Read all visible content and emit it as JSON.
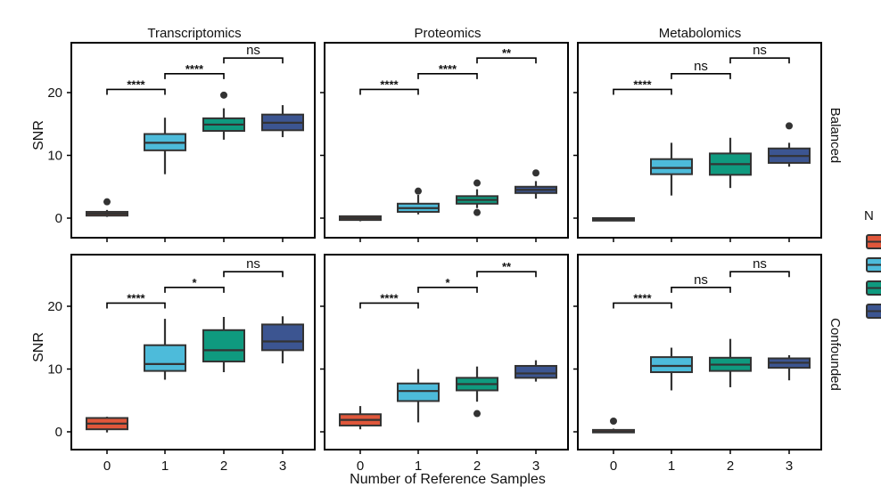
{
  "chart_data": {
    "type": "box",
    "xlabel": "Number of Reference Samples",
    "ylabel": "SNR",
    "categories": [
      "0",
      "1",
      "2",
      "3"
    ],
    "columns": [
      "Transcriptomics",
      "Proteomics",
      "Metabolomics"
    ],
    "rows": [
      "Balanced",
      "Confounded"
    ],
    "ylim": [
      -2,
      28
    ],
    "yticks": [
      0,
      10,
      20
    ],
    "legend_title": "N",
    "legend_placement": "right (partially cropped)",
    "colors": [
      "#E0573B",
      "#4DBBDA",
      "#0F9A7F",
      "#3C5591"
    ],
    "panels": [
      {
        "row": "Balanced",
        "column": "Transcriptomics",
        "boxes": [
          {
            "cat": "0",
            "min": 0.2,
            "q1": 0.4,
            "median": 0.7,
            "q3": 1.0,
            "max": 1.3,
            "outliers": [
              2.6
            ]
          },
          {
            "cat": "1",
            "min": 7.0,
            "q1": 10.8,
            "median": 12.0,
            "q3": 13.4,
            "max": 16.0,
            "outliers": []
          },
          {
            "cat": "2",
            "min": 12.5,
            "q1": 13.9,
            "median": 14.9,
            "q3": 15.9,
            "max": 17.5,
            "outliers": [
              19.6
            ]
          },
          {
            "cat": "3",
            "min": 12.9,
            "q1": 14.0,
            "median": 15.2,
            "q3": 16.5,
            "max": 18.0,
            "outliers": []
          }
        ],
        "comparisons": [
          {
            "from": "0",
            "to": "1",
            "label": "****",
            "y": 20.5
          },
          {
            "from": "1",
            "to": "2",
            "label": "****",
            "y": 23.0
          },
          {
            "from": "2",
            "to": "3",
            "label": "ns",
            "y": 25.5
          }
        ]
      },
      {
        "row": "Balanced",
        "column": "Proteomics",
        "boxes": [
          {
            "cat": "0",
            "min": -0.5,
            "q1": -0.3,
            "median": 0.0,
            "q3": 0.3,
            "max": 0.4,
            "outliers": []
          },
          {
            "cat": "1",
            "min": 0.6,
            "q1": 1.0,
            "median": 1.6,
            "q3": 2.3,
            "max": 3.7,
            "outliers": [
              4.3
            ]
          },
          {
            "cat": "2",
            "min": 1.6,
            "q1": 2.3,
            "median": 2.9,
            "q3": 3.5,
            "max": 4.6,
            "outliers": [
              5.6,
              0.9
            ]
          },
          {
            "cat": "3",
            "min": 3.1,
            "q1": 4.0,
            "median": 4.5,
            "q3": 5.0,
            "max": 5.9,
            "outliers": [
              7.2
            ]
          }
        ],
        "comparisons": [
          {
            "from": "0",
            "to": "1",
            "label": "****",
            "y": 20.5
          },
          {
            "from": "1",
            "to": "2",
            "label": "****",
            "y": 23.0
          },
          {
            "from": "2",
            "to": "3",
            "label": "**",
            "y": 25.5
          }
        ]
      },
      {
        "row": "Balanced",
        "column": "Metabolomics",
        "boxes": [
          {
            "cat": "0",
            "min": -0.5,
            "q1": -0.4,
            "median": -0.2,
            "q3": 0.0,
            "max": 0.1,
            "outliers": []
          },
          {
            "cat": "1",
            "min": 3.6,
            "q1": 7.0,
            "median": 8.0,
            "q3": 9.4,
            "max": 12.0,
            "outliers": []
          },
          {
            "cat": "2",
            "min": 4.8,
            "q1": 6.9,
            "median": 8.6,
            "q3": 10.3,
            "max": 12.8,
            "outliers": []
          },
          {
            "cat": "3",
            "min": 8.2,
            "q1": 8.8,
            "median": 9.9,
            "q3": 11.1,
            "max": 12.0,
            "outliers": [
              14.7
            ]
          }
        ],
        "comparisons": [
          {
            "from": "0",
            "to": "1",
            "label": "****",
            "y": 20.5
          },
          {
            "from": "1",
            "to": "2",
            "label": "ns",
            "y": 23.0
          },
          {
            "from": "2",
            "to": "3",
            "label": "ns",
            "y": 25.5
          }
        ]
      },
      {
        "row": "Confounded",
        "column": "Transcriptomics",
        "boxes": [
          {
            "cat": "0",
            "min": -0.1,
            "q1": 0.4,
            "median": 1.3,
            "q3": 2.2,
            "max": 2.4,
            "outliers": []
          },
          {
            "cat": "1",
            "min": 8.3,
            "q1": 9.7,
            "median": 10.8,
            "q3": 13.8,
            "max": 18.0,
            "outliers": []
          },
          {
            "cat": "2",
            "min": 9.5,
            "q1": 11.2,
            "median": 13.0,
            "q3": 16.2,
            "max": 18.3,
            "outliers": []
          },
          {
            "cat": "3",
            "min": 10.9,
            "q1": 13.0,
            "median": 14.4,
            "q3": 17.1,
            "max": 18.4,
            "outliers": []
          }
        ],
        "comparisons": [
          {
            "from": "0",
            "to": "1",
            "label": "****",
            "y": 20.5
          },
          {
            "from": "1",
            "to": "2",
            "label": "*",
            "y": 23.0
          },
          {
            "from": "2",
            "to": "3",
            "label": "ns",
            "y": 25.5
          }
        ]
      },
      {
        "row": "Confounded",
        "column": "Proteomics",
        "boxes": [
          {
            "cat": "0",
            "min": 0.4,
            "q1": 1.0,
            "median": 1.9,
            "q3": 2.8,
            "max": 4.1,
            "outliers": []
          },
          {
            "cat": "1",
            "min": 1.5,
            "q1": 4.9,
            "median": 6.5,
            "q3": 7.7,
            "max": 10.0,
            "outliers": []
          },
          {
            "cat": "2",
            "min": 4.8,
            "q1": 6.6,
            "median": 7.6,
            "q3": 8.6,
            "max": 10.4,
            "outliers": [
              2.9
            ]
          },
          {
            "cat": "3",
            "min": 8.0,
            "q1": 8.6,
            "median": 9.3,
            "q3": 10.5,
            "max": 11.4,
            "outliers": []
          }
        ],
        "comparisons": [
          {
            "from": "0",
            "to": "1",
            "label": "****",
            "y": 20.5
          },
          {
            "from": "1",
            "to": "2",
            "label": "*",
            "y": 23.0
          },
          {
            "from": "2",
            "to": "3",
            "label": "**",
            "y": 25.5
          }
        ]
      },
      {
        "row": "Confounded",
        "column": "Metabolomics",
        "boxes": [
          {
            "cat": "0",
            "min": -0.2,
            "q1": -0.1,
            "median": 0.0,
            "q3": 0.3,
            "max": 0.5,
            "outliers": [
              1.7
            ]
          },
          {
            "cat": "1",
            "min": 6.6,
            "q1": 9.5,
            "median": 10.5,
            "q3": 11.9,
            "max": 13.4,
            "outliers": []
          },
          {
            "cat": "2",
            "min": 7.1,
            "q1": 9.7,
            "median": 10.7,
            "q3": 11.8,
            "max": 14.8,
            "outliers": []
          },
          {
            "cat": "3",
            "min": 8.2,
            "q1": 10.2,
            "median": 11.0,
            "q3": 11.7,
            "max": 12.2,
            "outliers": []
          }
        ],
        "comparisons": [
          {
            "from": "0",
            "to": "1",
            "label": "****",
            "y": 20.5
          },
          {
            "from": "1",
            "to": "2",
            "label": "ns",
            "y": 23.0
          },
          {
            "from": "2",
            "to": "3",
            "label": "ns",
            "y": 25.5
          }
        ]
      }
    ]
  }
}
